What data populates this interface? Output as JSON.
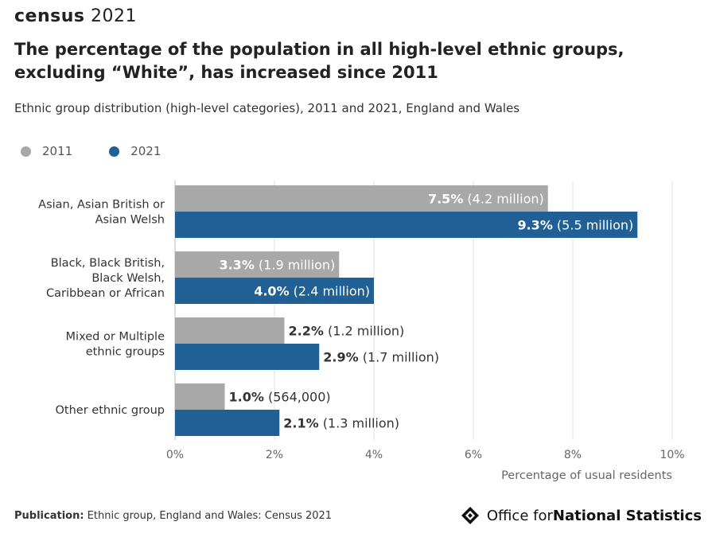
{
  "brand": {
    "census": "census",
    "year": "2021"
  },
  "title": "The percentage of the population in all high-level ethnic groups, excluding “White”, has increased since 2011",
  "subtitle": "Ethnic group distribution (high-level categories), 2011 and 2021, England and Wales",
  "legend": [
    {
      "label": "2011",
      "color": "#a8a8a8"
    },
    {
      "label": "2021",
      "color": "#206095"
    }
  ],
  "chart_data": {
    "type": "bar",
    "orientation": "horizontal",
    "categories": [
      [
        "Asian, Asian British or",
        "Asian Welsh"
      ],
      [
        "Black, Black British,",
        "Black Welsh,",
        "Caribbean or African"
      ],
      [
        "Mixed or Multiple",
        "ethnic groups"
      ],
      [
        "Other ethnic group"
      ]
    ],
    "series": [
      {
        "name": "2011",
        "color": "#a8a8a8",
        "values": [
          7.5,
          3.3,
          2.2,
          1.0
        ],
        "labels_bold": [
          "7.5%",
          "3.3%",
          "2.2%",
          "1.0%"
        ],
        "labels_extra": [
          " (4.2 million)",
          " (1.9 million)",
          " (1.2 million)",
          " (564,000)"
        ]
      },
      {
        "name": "2021",
        "color": "#206095",
        "values": [
          9.3,
          4.0,
          2.9,
          2.1
        ],
        "labels_bold": [
          "9.3%",
          "4.0%",
          "2.9%",
          "2.1%"
        ],
        "labels_extra": [
          " (5.5 million)",
          " (2.4 million)",
          " (1.7 million)",
          " (1.3 million)"
        ]
      }
    ],
    "xlim": [
      0,
      10
    ],
    "xticks": [
      "0%",
      "2%",
      "4%",
      "6%",
      "8%",
      "10%"
    ],
    "xlabel": "Percentage of usual residents",
    "grid": true
  },
  "footer": {
    "publication_label": "Publication:",
    "publication_text": " Ethnic group, England and Wales: Census 2021"
  },
  "ons_logo": {
    "prefix": "Office for ",
    "bold": "National Statistics"
  }
}
